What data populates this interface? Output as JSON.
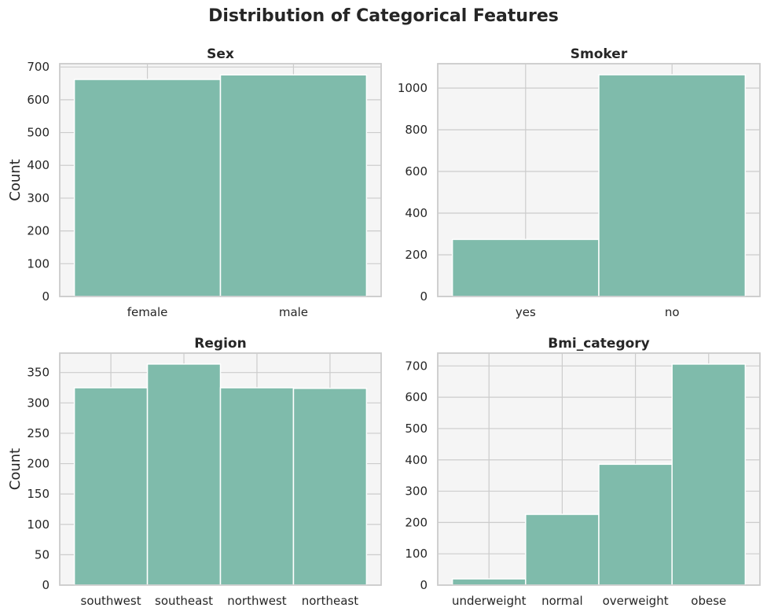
{
  "title": "Distribution of Categorical Features",
  "colors": {
    "bar": "#7fbbab",
    "panel_bg": "#f5f5f5",
    "grid": "#cccccc"
  },
  "chart_data": [
    {
      "type": "bar",
      "title": "Sex",
      "ylabel": "Count",
      "categories": [
        "female",
        "male"
      ],
      "values": [
        662,
        676
      ],
      "ylim": [
        0,
        710
      ],
      "yticks": [
        0,
        100,
        200,
        300,
        400,
        500,
        600,
        700
      ],
      "grid": true
    },
    {
      "type": "bar",
      "title": "Smoker",
      "ylabel": "",
      "categories": [
        "yes",
        "no"
      ],
      "values": [
        274,
        1064
      ],
      "ylim": [
        0,
        1117
      ],
      "yticks": [
        0,
        200,
        400,
        600,
        800,
        1000
      ],
      "grid": true
    },
    {
      "type": "bar",
      "title": "Region",
      "ylabel": "Count",
      "categories": [
        "southwest",
        "southeast",
        "northwest",
        "northeast"
      ],
      "values": [
        325,
        364,
        325,
        324
      ],
      "ylim": [
        0,
        382
      ],
      "yticks": [
        0,
        50,
        100,
        150,
        200,
        250,
        300,
        350
      ],
      "grid": true
    },
    {
      "type": "bar",
      "title": "Bmi_category",
      "ylabel": "",
      "categories": [
        "underweight",
        "normal",
        "overweight",
        "obese"
      ],
      "values": [
        20,
        226,
        386,
        706
      ],
      "ylim": [
        0,
        741
      ],
      "yticks": [
        0,
        100,
        200,
        300,
        400,
        500,
        600,
        700
      ],
      "grid": true
    }
  ]
}
